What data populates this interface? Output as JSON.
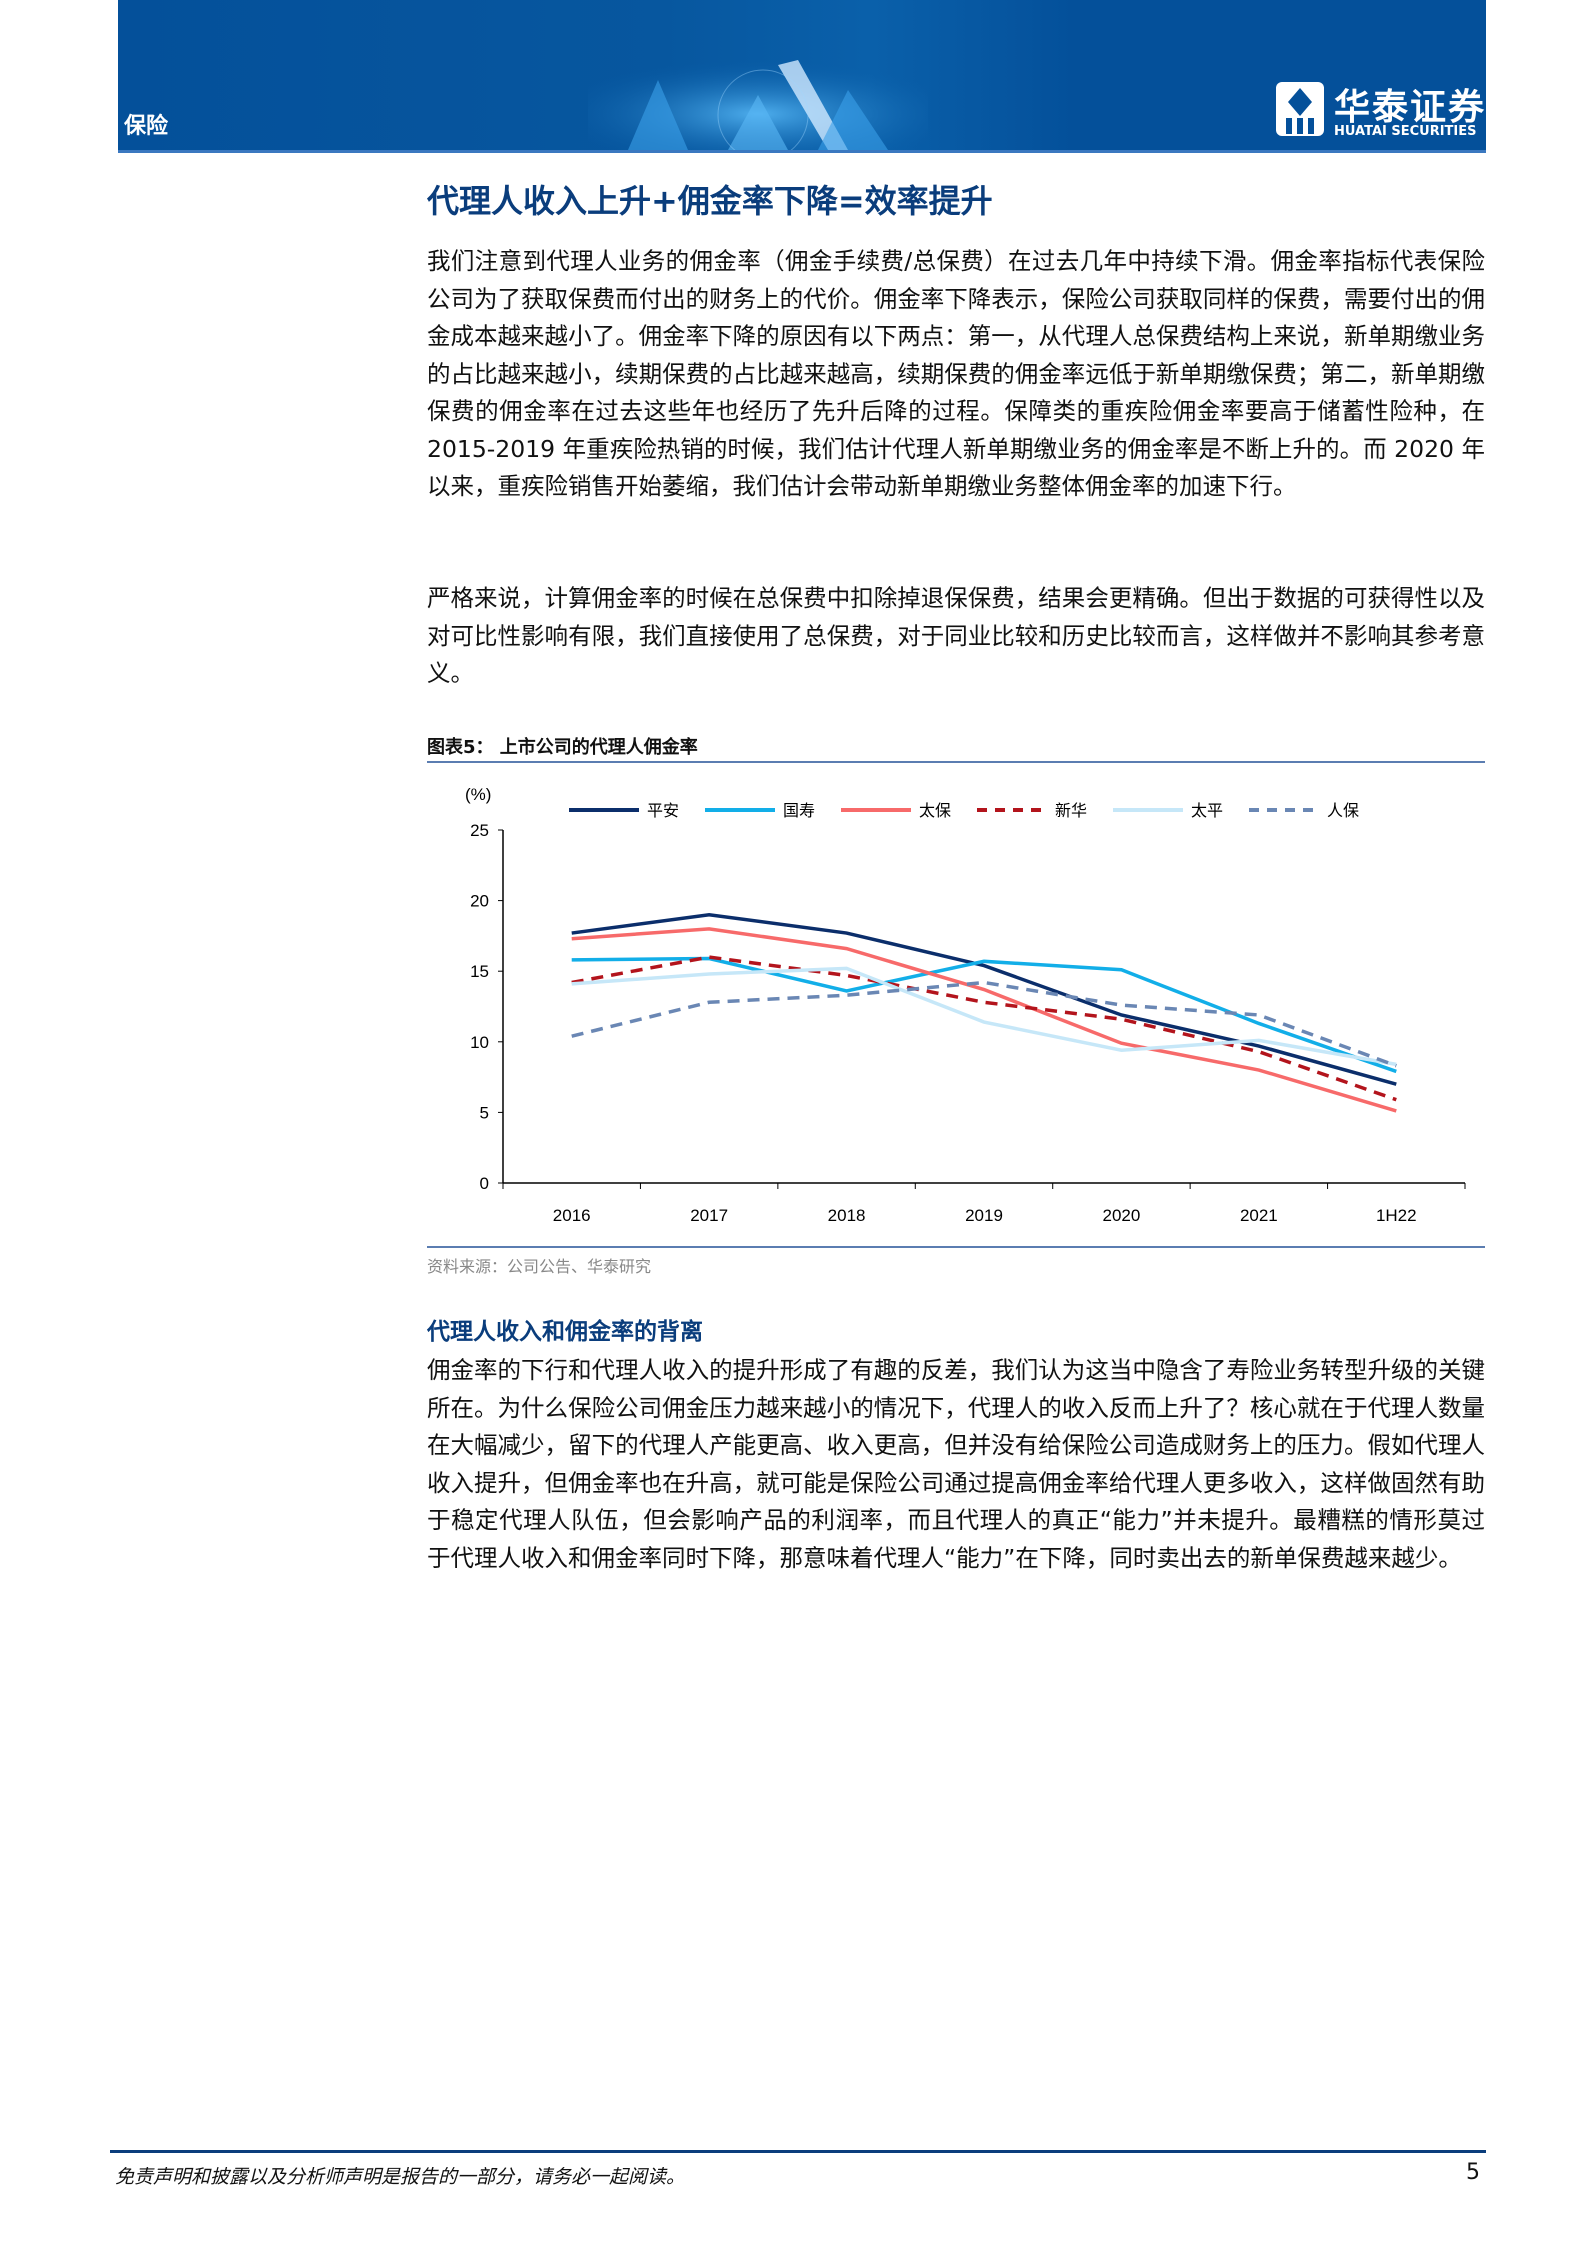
{
  "header": {
    "section": "保险",
    "logo_cn": "华泰证券",
    "logo_en": "HUATAI SECURITIES",
    "colors": {
      "band": "#04509a"
    }
  },
  "title": "代理人收入上升+佣金率下降=效率提升",
  "paragraphs": [
    "我们注意到代理人业务的佣金率（佣金手续费/总保费）在过去几年中持续下滑。佣金率指标代表保险公司为了获取保费而付出的财务上的代价。佣金率下降表示，保险公司获取同样的保费，需要付出的佣金成本越来越小了。佣金率下降的原因有以下两点：第一，从代理人总保费结构上来说，新单期缴业务的占比越来越小，续期保费的占比越来越高，续期保费的佣金率远低于新单期缴保费；第二，新单期缴保费的佣金率在过去这些年也经历了先升后降的过程。保障类的重疾险佣金率要高于储蓄性险种，在 2015-2019 年重疾险热销的时候，我们估计代理人新单期缴业务的佣金率是不断上升的。而 2020 年以来，重疾险销售开始萎缩，我们估计会带动新单期缴业务整体佣金率的加速下行。",
    "严格来说，计算佣金率的时候在总保费中扣除掉退保保费，结果会更精确。但出于数据的可获得性以及对可比性影响有限，我们直接使用了总保费，对于同业比较和历史比较而言，这样做并不影响其参考意义。"
  ],
  "chart_title": "图表5：  上市公司的代理人佣金率",
  "chart_source": "资料来源：公司公告、华泰研究",
  "chart_data": {
    "type": "line",
    "title": "",
    "ylabel": "(%)",
    "xlabel": "",
    "categories": [
      "2016",
      "2017",
      "2018",
      "2019",
      "2020",
      "2021",
      "1H22"
    ],
    "ylim": [
      0,
      25
    ],
    "yticks": [
      0,
      5,
      10,
      15,
      20,
      25
    ],
    "grid": false,
    "legend": "top",
    "series": [
      {
        "name": "平安",
        "values": [
          17.7,
          19.0,
          17.7,
          15.4,
          11.9,
          9.7,
          7.0
        ],
        "color": "#0b2e6b",
        "dash": false
      },
      {
        "name": "国寿",
        "values": [
          15.8,
          15.9,
          13.6,
          15.7,
          15.1,
          11.3,
          7.9
        ],
        "color": "#12aee8",
        "dash": false
      },
      {
        "name": "太保",
        "values": [
          17.3,
          18.0,
          16.6,
          13.7,
          9.9,
          8.0,
          5.1
        ],
        "color": "#f76a6a",
        "dash": false
      },
      {
        "name": "新华",
        "values": [
          14.2,
          16.0,
          14.7,
          12.8,
          11.6,
          9.3,
          5.9
        ],
        "color": "#b3141c",
        "dash": true
      },
      {
        "name": "太平",
        "values": [
          14.1,
          14.8,
          15.2,
          11.4,
          9.4,
          10.1,
          8.4
        ],
        "color": "#c6e7f8",
        "dash": false
      },
      {
        "name": "人保",
        "values": [
          10.4,
          12.8,
          13.3,
          14.2,
          12.6,
          11.9,
          8.3
        ],
        "color": "#6a87b4",
        "dash": true
      }
    ]
  },
  "subheading": "代理人收入和佣金率的背离",
  "paragraph3": "佣金率的下行和代理人收入的提升形成了有趣的反差，我们认为这当中隐含了寿险业务转型升级的关键所在。为什么保险公司佣金压力越来越小的情况下，代理人的收入反而上升了？核心就在于代理人数量在大幅减少，留下的代理人产能更高、收入更高，但并没有给保险公司造成财务上的压力。假如代理人收入提升，但佣金率也在升高，就可能是保险公司通过提高佣金率给代理人更多收入，这样做固然有助于稳定代理人队伍，但会影响产品的利润率，而且代理人的真正“能力”并未提升。最糟糕的情形莫过于代理人收入和佣金率同时下降，那意味着代理人“能力”在下降，同时卖出去的新单保费越来越少。",
  "footer": {
    "disclaimer": "免责声明和披露以及分析师声明是报告的一部分，请务必一起阅读。",
    "page": "5"
  }
}
